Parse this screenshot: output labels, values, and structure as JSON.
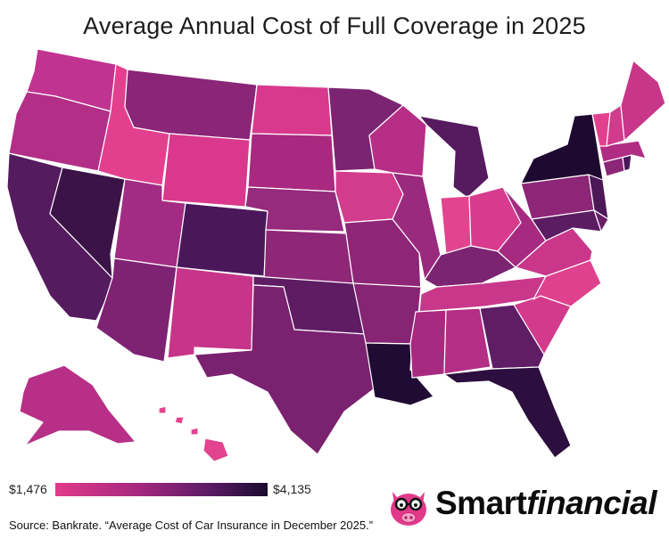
{
  "title": "Average Annual Cost of Full Coverage in 2025",
  "legend": {
    "min_label": "$1,476",
    "max_label": "$4,135",
    "min_value": 1476,
    "max_value": 4135,
    "low_color": "#e23a8a",
    "high_color": "#1a0b2e"
  },
  "source": "Source: Bankrate. “Average Cost of Car Insurance in December 2025.”",
  "brand": {
    "part1": "Smart",
    "part2": "financial",
    "logo_icon": "pig-with-glasses-icon",
    "accent": "#e23a8a"
  },
  "map": {
    "type": "choropleth",
    "states": [
      {
        "id": "WA",
        "color": "#c13390"
      },
      {
        "id": "OR",
        "color": "#b32e87"
      },
      {
        "id": "CA",
        "color": "#541b5e"
      },
      {
        "id": "NV",
        "color": "#3b1347"
      },
      {
        "id": "ID",
        "color": "#e2408f"
      },
      {
        "id": "MT",
        "color": "#8a2577"
      },
      {
        "id": "WY",
        "color": "#d9388c"
      },
      {
        "id": "UT",
        "color": "#a22c83"
      },
      {
        "id": "AZ",
        "color": "#7e2274"
      },
      {
        "id": "CO",
        "color": "#4a185a"
      },
      {
        "id": "NM",
        "color": "#c63589"
      },
      {
        "id": "ND",
        "color": "#d8398d"
      },
      {
        "id": "SD",
        "color": "#a8297f"
      },
      {
        "id": "NE",
        "color": "#962a7c"
      },
      {
        "id": "KS",
        "color": "#8f2778"
      },
      {
        "id": "OK",
        "color": "#5e1d63"
      },
      {
        "id": "TX",
        "color": "#7a2170"
      },
      {
        "id": "MN",
        "color": "#7b2472"
      },
      {
        "id": "IA",
        "color": "#d33b8d"
      },
      {
        "id": "MO",
        "color": "#8e2677"
      },
      {
        "id": "AR",
        "color": "#872574"
      },
      {
        "id": "LA",
        "color": "#1f0b33"
      },
      {
        "id": "WI",
        "color": "#b72e86"
      },
      {
        "id": "IL",
        "color": "#9a2a7e"
      },
      {
        "id": "MI",
        "color": "#561a5f"
      },
      {
        "id": "IN",
        "color": "#e2448f"
      },
      {
        "id": "OH",
        "color": "#d83b8d"
      },
      {
        "id": "KY",
        "color": "#7c2371"
      },
      {
        "id": "TN",
        "color": "#c9378b"
      },
      {
        "id": "MS",
        "color": "#a82a80"
      },
      {
        "id": "AL",
        "color": "#b32e84"
      },
      {
        "id": "GA",
        "color": "#5e1d64"
      },
      {
        "id": "FL",
        "color": "#2c0f3e"
      },
      {
        "id": "SC",
        "color": "#d33a8c"
      },
      {
        "id": "NC",
        "color": "#e0418f"
      },
      {
        "id": "VA",
        "color": "#c9368a"
      },
      {
        "id": "WV",
        "color": "#a62a80"
      },
      {
        "id": "PA",
        "color": "#8d2677"
      },
      {
        "id": "NY",
        "color": "#1e0a30"
      },
      {
        "id": "NJ",
        "color": "#4c1858"
      },
      {
        "id": "DE",
        "color": "#6a1e68"
      },
      {
        "id": "MD",
        "color": "#5b1c62"
      },
      {
        "id": "CT",
        "color": "#8c2677"
      },
      {
        "id": "RI",
        "color": "#4a1758"
      },
      {
        "id": "MA",
        "color": "#b12d84"
      },
      {
        "id": "VT",
        "color": "#e2408f"
      },
      {
        "id": "NH",
        "color": "#d23a8c"
      },
      {
        "id": "ME",
        "color": "#c8368a"
      },
      {
        "id": "AK",
        "color": "#b72f87"
      },
      {
        "id": "HI",
        "color": "#e2438f"
      }
    ]
  }
}
